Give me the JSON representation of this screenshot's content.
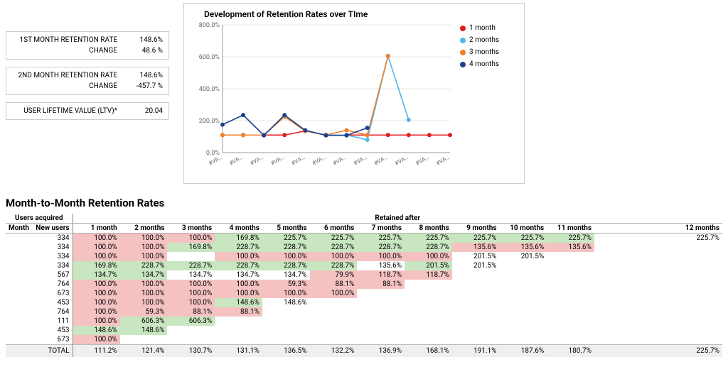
{
  "metrics": {
    "m1": {
      "label": "1ST MONTH RETENTION RATE",
      "value": "148.6%"
    },
    "m1c": {
      "label": "CHANGE",
      "value": "48.6 %"
    },
    "m2": {
      "label": "2ND MONTH RETENTION RATE",
      "value": "148.6%"
    },
    "m2c": {
      "label": "CHANGE",
      "value": "-457.7 %"
    },
    "ltv": {
      "label": "USER LIFETIME VALUE (LTV)*",
      "value": "20.04"
    }
  },
  "chart": {
    "title": "Development of Retention Rates over TIme",
    "type": "line",
    "ylim": [
      0,
      800
    ],
    "ytick_step": 200,
    "ylabels": [
      "0.0%",
      "200.0%",
      "400.0%",
      "600.0%",
      "800.0%"
    ],
    "xlabels": [
      "#VA…",
      "#VA…",
      "#VA…",
      "#VA…",
      "#VA…",
      "#VA…",
      "#VA…",
      "#VA…",
      "#VA…",
      "#VA…",
      "#VA…",
      "#VA…"
    ],
    "grid_color": "#e5e5e5",
    "background_color": "#ffffff",
    "marker_radius": 3,
    "line_width": 1.6,
    "series": [
      {
        "name": "1 month",
        "color": "#e11d1d",
        "y": [
          110,
          110,
          110,
          110,
          135,
          110,
          110,
          110,
          110,
          110,
          110,
          110
        ]
      },
      {
        "name": "2 months",
        "color": "#4fb7e6",
        "y": [
          110,
          110,
          110,
          225,
          135,
          110,
          110,
          80,
          605,
          205,
          null,
          null
        ]
      },
      {
        "name": "3 months",
        "color": "#f0812a",
        "y": [
          110,
          110,
          110,
          225,
          135,
          110,
          140,
          110,
          605,
          null,
          null,
          null
        ]
      },
      {
        "name": "4 months",
        "color": "#1e3f8f",
        "y": [
          175,
          235,
          108,
          235,
          140,
          108,
          108,
          155,
          null,
          null,
          null,
          null
        ]
      }
    ],
    "legend": [
      {
        "label": "1 month",
        "color": "#e11d1d"
      },
      {
        "label": "2 months",
        "color": "#4fb7e6"
      },
      {
        "label": "3 months",
        "color": "#f0812a"
      },
      {
        "label": "4 months",
        "color": "#1e3f8f"
      }
    ]
  },
  "table": {
    "heading": "Month-to-Month Retention Rates",
    "group_left": "Users acquired",
    "group_right": "Retained after",
    "col_month": "Month",
    "col_users": "New users",
    "cols": [
      "1 month",
      "2 months",
      "3 months",
      "4 months",
      "5 months",
      "6 months",
      "7 months",
      "8 months",
      "9 months",
      "10 months",
      "11 months",
      "12 months"
    ],
    "rows": [
      {
        "users": "334",
        "cells": [
          {
            "v": "100.0%",
            "c": "r"
          },
          {
            "v": "100.0%",
            "c": "r"
          },
          {
            "v": "100.0%",
            "c": "r"
          },
          {
            "v": "169.8%",
            "c": "g"
          },
          {
            "v": "225.7%",
            "c": "g"
          },
          {
            "v": "225.7%",
            "c": "g"
          },
          {
            "v": "225.7%",
            "c": "g"
          },
          {
            "v": "225.7%",
            "c": "g"
          },
          {
            "v": "225.7%",
            "c": "g"
          },
          {
            "v": "225.7%",
            "c": "g"
          },
          {
            "v": "225.7%",
            "c": "g"
          },
          {
            "v": "225.7%",
            "c": ""
          }
        ]
      },
      {
        "users": "334",
        "cells": [
          {
            "v": "100.0%",
            "c": "r"
          },
          {
            "v": "100.0%",
            "c": "r"
          },
          {
            "v": "169.8%",
            "c": "g"
          },
          {
            "v": "228.7%",
            "c": "g"
          },
          {
            "v": "228.7%",
            "c": "g"
          },
          {
            "v": "228.7%",
            "c": "g"
          },
          {
            "v": "228.7%",
            "c": "g"
          },
          {
            "v": "228.7%",
            "c": "g"
          },
          {
            "v": "135.6%",
            "c": "r"
          },
          {
            "v": "135.6%",
            "c": "r"
          },
          {
            "v": "135.6%",
            "c": "r"
          },
          {
            "v": "",
            "c": ""
          }
        ]
      },
      {
        "users": "334",
        "cells": [
          {
            "v": "100.0%",
            "c": "r"
          },
          {
            "v": "100.0%",
            "c": "r"
          },
          {
            "v": "",
            "c": ""
          },
          {
            "v": "100.0%",
            "c": "r"
          },
          {
            "v": "100.0%",
            "c": "r"
          },
          {
            "v": "100.0%",
            "c": "r"
          },
          {
            "v": "100.0%",
            "c": "r"
          },
          {
            "v": "100.0%",
            "c": "r"
          },
          {
            "v": "201.5%",
            "c": ""
          },
          {
            "v": "201.5%",
            "c": ""
          },
          {
            "v": "",
            "c": ""
          },
          {
            "v": "",
            "c": ""
          }
        ]
      },
      {
        "users": "334",
        "cells": [
          {
            "v": "169.8%",
            "c": "g"
          },
          {
            "v": "228.7%",
            "c": "g"
          },
          {
            "v": "228.7%",
            "c": "g"
          },
          {
            "v": "228.7%",
            "c": "g"
          },
          {
            "v": "228.7%",
            "c": "g"
          },
          {
            "v": "228.7%",
            "c": "g"
          },
          {
            "v": "135.6%",
            "c": ""
          },
          {
            "v": "201.5%",
            "c": "g"
          },
          {
            "v": "201.5%",
            "c": ""
          },
          {
            "v": "",
            "c": ""
          },
          {
            "v": "",
            "c": ""
          },
          {
            "v": "",
            "c": ""
          }
        ]
      },
      {
        "users": "567",
        "cells": [
          {
            "v": "134.7%",
            "c": "g"
          },
          {
            "v": "134.7%",
            "c": "g"
          },
          {
            "v": "134.7%",
            "c": ""
          },
          {
            "v": "134.7%",
            "c": ""
          },
          {
            "v": "134.7%",
            "c": ""
          },
          {
            "v": "79.9%",
            "c": "r"
          },
          {
            "v": "118.7%",
            "c": "r"
          },
          {
            "v": "118.7%",
            "c": "r"
          },
          {
            "v": "",
            "c": ""
          },
          {
            "v": "",
            "c": ""
          },
          {
            "v": "",
            "c": ""
          },
          {
            "v": "",
            "c": ""
          }
        ]
      },
      {
        "users": "764",
        "cells": [
          {
            "v": "100.0%",
            "c": "r"
          },
          {
            "v": "100.0%",
            "c": "r"
          },
          {
            "v": "100.0%",
            "c": "r"
          },
          {
            "v": "100.0%",
            "c": "r"
          },
          {
            "v": "59.3%",
            "c": "r"
          },
          {
            "v": "88.1%",
            "c": "r"
          },
          {
            "v": "88.1%",
            "c": "r"
          },
          {
            "v": "",
            "c": ""
          },
          {
            "v": "",
            "c": ""
          },
          {
            "v": "",
            "c": ""
          },
          {
            "v": "",
            "c": ""
          },
          {
            "v": "",
            "c": ""
          }
        ]
      },
      {
        "users": "673",
        "cells": [
          {
            "v": "100.0%",
            "c": "r"
          },
          {
            "v": "100.0%",
            "c": "r"
          },
          {
            "v": "100.0%",
            "c": "r"
          },
          {
            "v": "100.0%",
            "c": "r"
          },
          {
            "v": "100.0%",
            "c": "r"
          },
          {
            "v": "100.0%",
            "c": "r"
          },
          {
            "v": "",
            "c": ""
          },
          {
            "v": "",
            "c": ""
          },
          {
            "v": "",
            "c": ""
          },
          {
            "v": "",
            "c": ""
          },
          {
            "v": "",
            "c": ""
          },
          {
            "v": "",
            "c": ""
          }
        ]
      },
      {
        "users": "453",
        "cells": [
          {
            "v": "100.0%",
            "c": "r"
          },
          {
            "v": "100.0%",
            "c": "r"
          },
          {
            "v": "100.0%",
            "c": "r"
          },
          {
            "v": "148.6%",
            "c": "g"
          },
          {
            "v": "148.6%",
            "c": ""
          },
          {
            "v": "",
            "c": ""
          },
          {
            "v": "",
            "c": ""
          },
          {
            "v": "",
            "c": ""
          },
          {
            "v": "",
            "c": ""
          },
          {
            "v": "",
            "c": ""
          },
          {
            "v": "",
            "c": ""
          },
          {
            "v": "",
            "c": ""
          }
        ]
      },
      {
        "users": "764",
        "cells": [
          {
            "v": "100.0%",
            "c": "r"
          },
          {
            "v": "59.3%",
            "c": "r"
          },
          {
            "v": "88.1%",
            "c": "r"
          },
          {
            "v": "88.1%",
            "c": "r"
          },
          {
            "v": "",
            "c": ""
          },
          {
            "v": "",
            "c": ""
          },
          {
            "v": "",
            "c": ""
          },
          {
            "v": "",
            "c": ""
          },
          {
            "v": "",
            "c": ""
          },
          {
            "v": "",
            "c": ""
          },
          {
            "v": "",
            "c": ""
          },
          {
            "v": "",
            "c": ""
          }
        ]
      },
      {
        "users": "111",
        "cells": [
          {
            "v": "100.0%",
            "c": "r"
          },
          {
            "v": "606.3%",
            "c": "g"
          },
          {
            "v": "606.3%",
            "c": "g"
          },
          {
            "v": "",
            "c": ""
          },
          {
            "v": "",
            "c": ""
          },
          {
            "v": "",
            "c": ""
          },
          {
            "v": "",
            "c": ""
          },
          {
            "v": "",
            "c": ""
          },
          {
            "v": "",
            "c": ""
          },
          {
            "v": "",
            "c": ""
          },
          {
            "v": "",
            "c": ""
          },
          {
            "v": "",
            "c": ""
          }
        ]
      },
      {
        "users": "453",
        "cells": [
          {
            "v": "148.6%",
            "c": "g"
          },
          {
            "v": "148.6%",
            "c": "g"
          },
          {
            "v": "",
            "c": ""
          },
          {
            "v": "",
            "c": ""
          },
          {
            "v": "",
            "c": ""
          },
          {
            "v": "",
            "c": ""
          },
          {
            "v": "",
            "c": ""
          },
          {
            "v": "",
            "c": ""
          },
          {
            "v": "",
            "c": ""
          },
          {
            "v": "",
            "c": ""
          },
          {
            "v": "",
            "c": ""
          },
          {
            "v": "",
            "c": ""
          }
        ]
      },
      {
        "users": "673",
        "cells": [
          {
            "v": "100.0%",
            "c": "r"
          },
          {
            "v": "",
            "c": ""
          },
          {
            "v": "",
            "c": ""
          },
          {
            "v": "",
            "c": ""
          },
          {
            "v": "",
            "c": ""
          },
          {
            "v": "",
            "c": ""
          },
          {
            "v": "",
            "c": ""
          },
          {
            "v": "",
            "c": ""
          },
          {
            "v": "",
            "c": ""
          },
          {
            "v": "",
            "c": ""
          },
          {
            "v": "",
            "c": ""
          },
          {
            "v": "",
            "c": ""
          }
        ]
      }
    ],
    "total_label": "TOTAL",
    "totals": [
      "111.2%",
      "121.4%",
      "130.7%",
      "131.1%",
      "136.5%",
      "132.2%",
      "136.9%",
      "168.1%",
      "191.1%",
      "187.6%",
      "180.7%",
      "225.7%"
    ]
  }
}
